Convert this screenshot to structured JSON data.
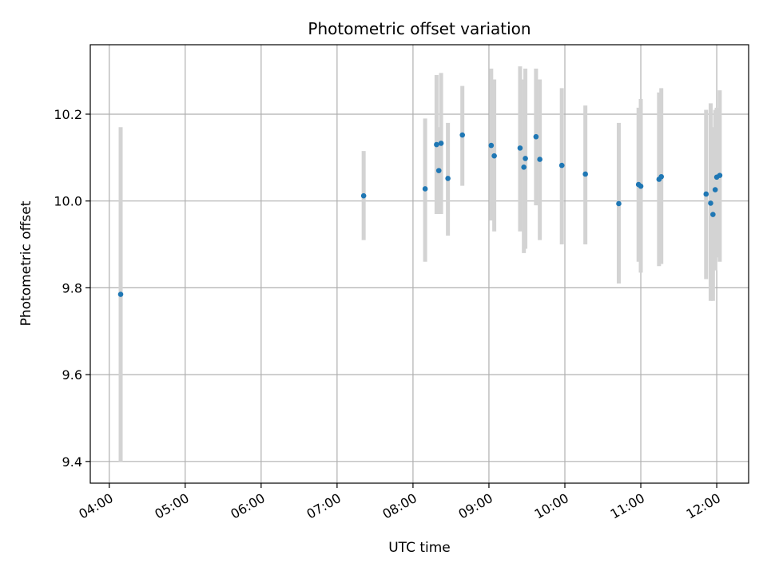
{
  "chart_data": {
    "type": "scatter",
    "title": "Photometric offset variation",
    "xlabel": "UTC time",
    "ylabel": "Photometric offset",
    "x_unit": "hours UTC",
    "xlim": [
      3.75,
      12.42
    ],
    "ylim": [
      9.35,
      10.36
    ],
    "x_ticks": [
      {
        "value": 4,
        "label": "04:00"
      },
      {
        "value": 5,
        "label": "05:00"
      },
      {
        "value": 6,
        "label": "06:00"
      },
      {
        "value": 7,
        "label": "07:00"
      },
      {
        "value": 8,
        "label": "08:00"
      },
      {
        "value": 9,
        "label": "09:00"
      },
      {
        "value": 10,
        "label": "10:00"
      },
      {
        "value": 11,
        "label": "11:00"
      },
      {
        "value": 12,
        "label": "12:00"
      }
    ],
    "y_ticks": [
      {
        "value": 9.4,
        "label": "9.4"
      },
      {
        "value": 9.6,
        "label": "9.6"
      },
      {
        "value": 9.8,
        "label": "9.8"
      },
      {
        "value": 10.0,
        "label": "10.0"
      },
      {
        "value": 10.2,
        "label": "10.2"
      }
    ],
    "grid": true,
    "marker_color": "#1f77b4",
    "errorbar_color": "#d3d3d3",
    "points": [
      {
        "x": 4.15,
        "y": 9.785,
        "ylo": 9.4,
        "yhi": 10.17
      },
      {
        "x": 7.35,
        "y": 10.012,
        "ylo": 9.91,
        "yhi": 10.115
      },
      {
        "x": 8.16,
        "y": 10.028,
        "ylo": 9.86,
        "yhi": 10.19
      },
      {
        "x": 8.31,
        "y": 10.13,
        "ylo": 9.97,
        "yhi": 10.29
      },
      {
        "x": 8.34,
        "y": 10.07,
        "ylo": 9.97,
        "yhi": 10.17
      },
      {
        "x": 8.37,
        "y": 10.133,
        "ylo": 9.97,
        "yhi": 10.295
      },
      {
        "x": 8.46,
        "y": 10.052,
        "ylo": 9.92,
        "yhi": 10.18
      },
      {
        "x": 8.65,
        "y": 10.152,
        "ylo": 10.035,
        "yhi": 10.265
      },
      {
        "x": 9.03,
        "y": 10.128,
        "ylo": 9.955,
        "yhi": 10.305
      },
      {
        "x": 9.07,
        "y": 10.104,
        "ylo": 9.93,
        "yhi": 10.28
      },
      {
        "x": 9.41,
        "y": 10.122,
        "ylo": 9.93,
        "yhi": 10.31
      },
      {
        "x": 9.46,
        "y": 10.078,
        "ylo": 9.88,
        "yhi": 10.28
      },
      {
        "x": 9.48,
        "y": 10.098,
        "ylo": 9.89,
        "yhi": 10.305
      },
      {
        "x": 9.62,
        "y": 10.148,
        "ylo": 9.99,
        "yhi": 10.305
      },
      {
        "x": 9.67,
        "y": 10.096,
        "ylo": 9.91,
        "yhi": 10.28
      },
      {
        "x": 9.96,
        "y": 10.082,
        "ylo": 9.9,
        "yhi": 10.26
      },
      {
        "x": 10.27,
        "y": 10.062,
        "ylo": 9.9,
        "yhi": 10.22
      },
      {
        "x": 10.71,
        "y": 9.994,
        "ylo": 9.81,
        "yhi": 10.18
      },
      {
        "x": 10.97,
        "y": 10.038,
        "ylo": 9.86,
        "yhi": 10.215
      },
      {
        "x": 11.0,
        "y": 10.034,
        "ylo": 9.835,
        "yhi": 10.235
      },
      {
        "x": 11.24,
        "y": 10.05,
        "ylo": 9.85,
        "yhi": 10.25
      },
      {
        "x": 11.27,
        "y": 10.056,
        "ylo": 9.855,
        "yhi": 10.26
      },
      {
        "x": 11.86,
        "y": 10.016,
        "ylo": 9.82,
        "yhi": 10.21
      },
      {
        "x": 11.92,
        "y": 9.995,
        "ylo": 9.77,
        "yhi": 10.225
      },
      {
        "x": 11.95,
        "y": 9.969,
        "ylo": 9.77,
        "yhi": 10.17
      },
      {
        "x": 11.98,
        "y": 10.026,
        "ylo": 9.84,
        "yhi": 10.21
      },
      {
        "x": 12.0,
        "y": 10.055,
        "ylo": 9.87,
        "yhi": 10.215
      },
      {
        "x": 12.04,
        "y": 10.059,
        "ylo": 9.86,
        "yhi": 10.255
      }
    ]
  }
}
